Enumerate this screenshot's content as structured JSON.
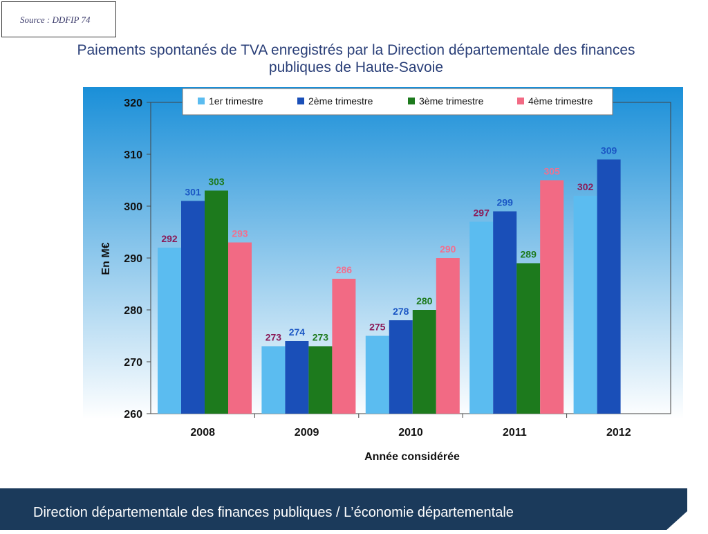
{
  "source": "Source : DDFIP 74",
  "title_line1": "Paiements spontanés de TVA enregistrés par la Direction départementale des finances",
  "title_line2": "publiques de Haute-Savoie",
  "footer": "Direction départementale des finances publiques / L’économie départementale",
  "colors": {
    "series": [
      "#5bbcf0",
      "#1a4fb8",
      "#1d7a1d",
      "#f26a84"
    ],
    "labels": [
      "#8a1a58",
      "#1a56c4",
      "#1d7a1d",
      "#f07090"
    ],
    "plot_top": "#1a8fd8",
    "plot_bottom": "#ffffff"
  },
  "chart_data": {
    "type": "bar",
    "title": "Paiements spontanés de TVA enregistrés par la Direction départementale des finances publiques de Haute-Savoie",
    "categories": [
      "2008",
      "2009",
      "2010",
      "2011",
      "2012"
    ],
    "series": [
      {
        "name": "1er trimestre",
        "values": [
          292,
          273,
          275,
          297,
          302
        ]
      },
      {
        "name": "2ème trimestre",
        "values": [
          301,
          274,
          278,
          299,
          309
        ]
      },
      {
        "name": "3ème trimestre",
        "values": [
          303,
          273,
          280,
          289,
          null
        ]
      },
      {
        "name": "4ème trimestre",
        "values": [
          293,
          286,
          290,
          305,
          null
        ]
      }
    ],
    "xlabel": "Année considérée",
    "ylabel": "En M€",
    "ylim": [
      260,
      320
    ],
    "yticks": [
      260,
      270,
      280,
      290,
      300,
      310,
      320
    ],
    "legend_position": "top",
    "grid": false
  }
}
